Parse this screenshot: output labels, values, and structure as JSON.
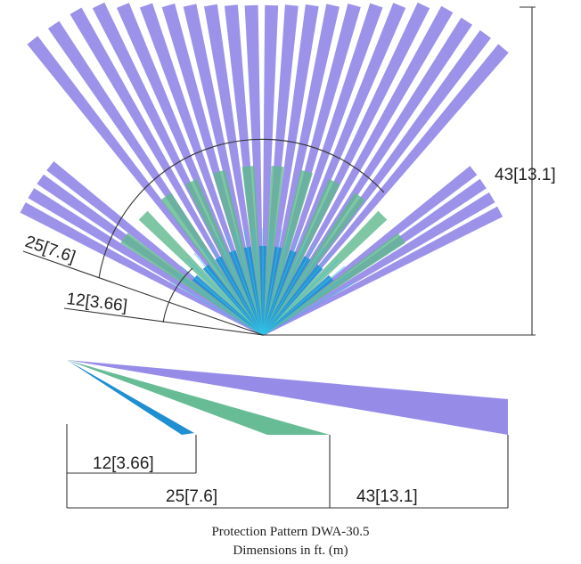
{
  "diagram": {
    "caption_title": "Protection Pattern DWA-30.5",
    "caption_units": "Dimensions in ft. (m)",
    "colors": {
      "long_range": "#8b7fe6",
      "mid_range": "#5fb88f",
      "short_range": "#1e8fd0",
      "line": "#333333"
    },
    "top_view": {
      "range_labels": {
        "short": "12[3.66]",
        "mid": "25[7.6]",
        "long": "43[13.1]"
      }
    },
    "side_view": {
      "range_labels": {
        "short": "12[3.66]",
        "mid": "25[7.6]",
        "long": "43[13.1]"
      }
    }
  }
}
